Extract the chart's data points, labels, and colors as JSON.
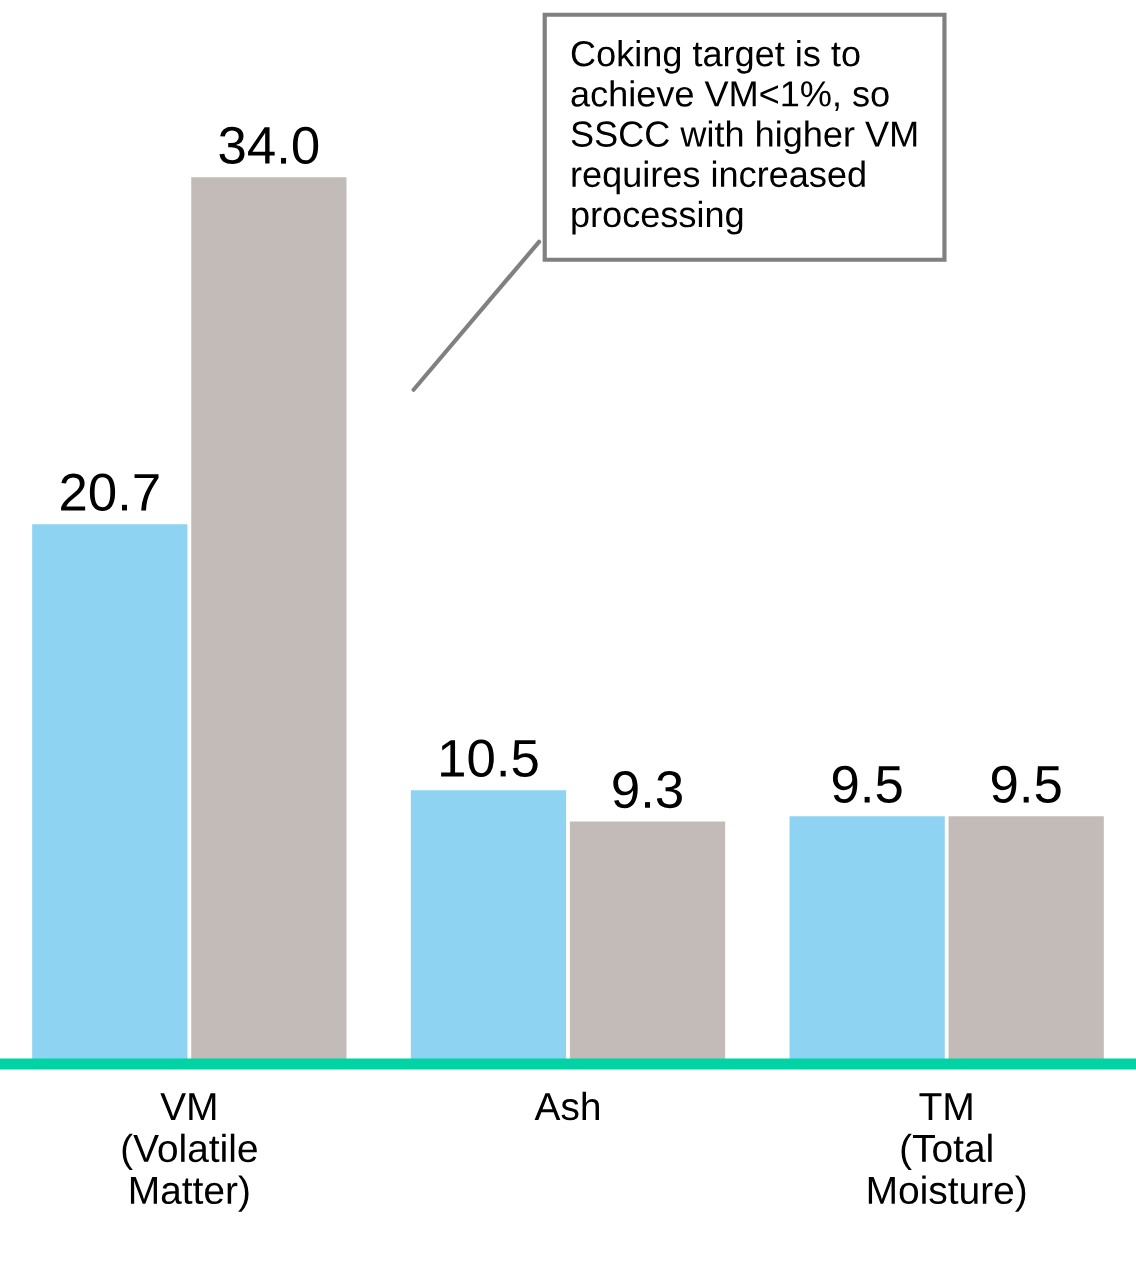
{
  "chart_data": {
    "type": "bar",
    "categories": [
      "VM\n(Volatile\nMatter)",
      "Ash",
      "TM\n(Total\nMoisture)"
    ],
    "series": [
      {
        "color": "#8fd3f2",
        "values": [
          20.7,
          10.5,
          9.5
        ],
        "value_labels": [
          "20.7",
          "10.5",
          "9.5"
        ]
      },
      {
        "color": "#c3bbb8",
        "values": [
          34.0,
          9.3,
          9.5
        ],
        "value_labels": [
          "34.0",
          "9.3",
          "9.5"
        ]
      }
    ],
    "grid": false,
    "legend": false,
    "tick_labels": "x",
    "annotations": [
      "Coking target is to\nachieve VM<1%, so\nSSCC with higher VM\nrequires increased\nprocessing"
    ]
  }
}
